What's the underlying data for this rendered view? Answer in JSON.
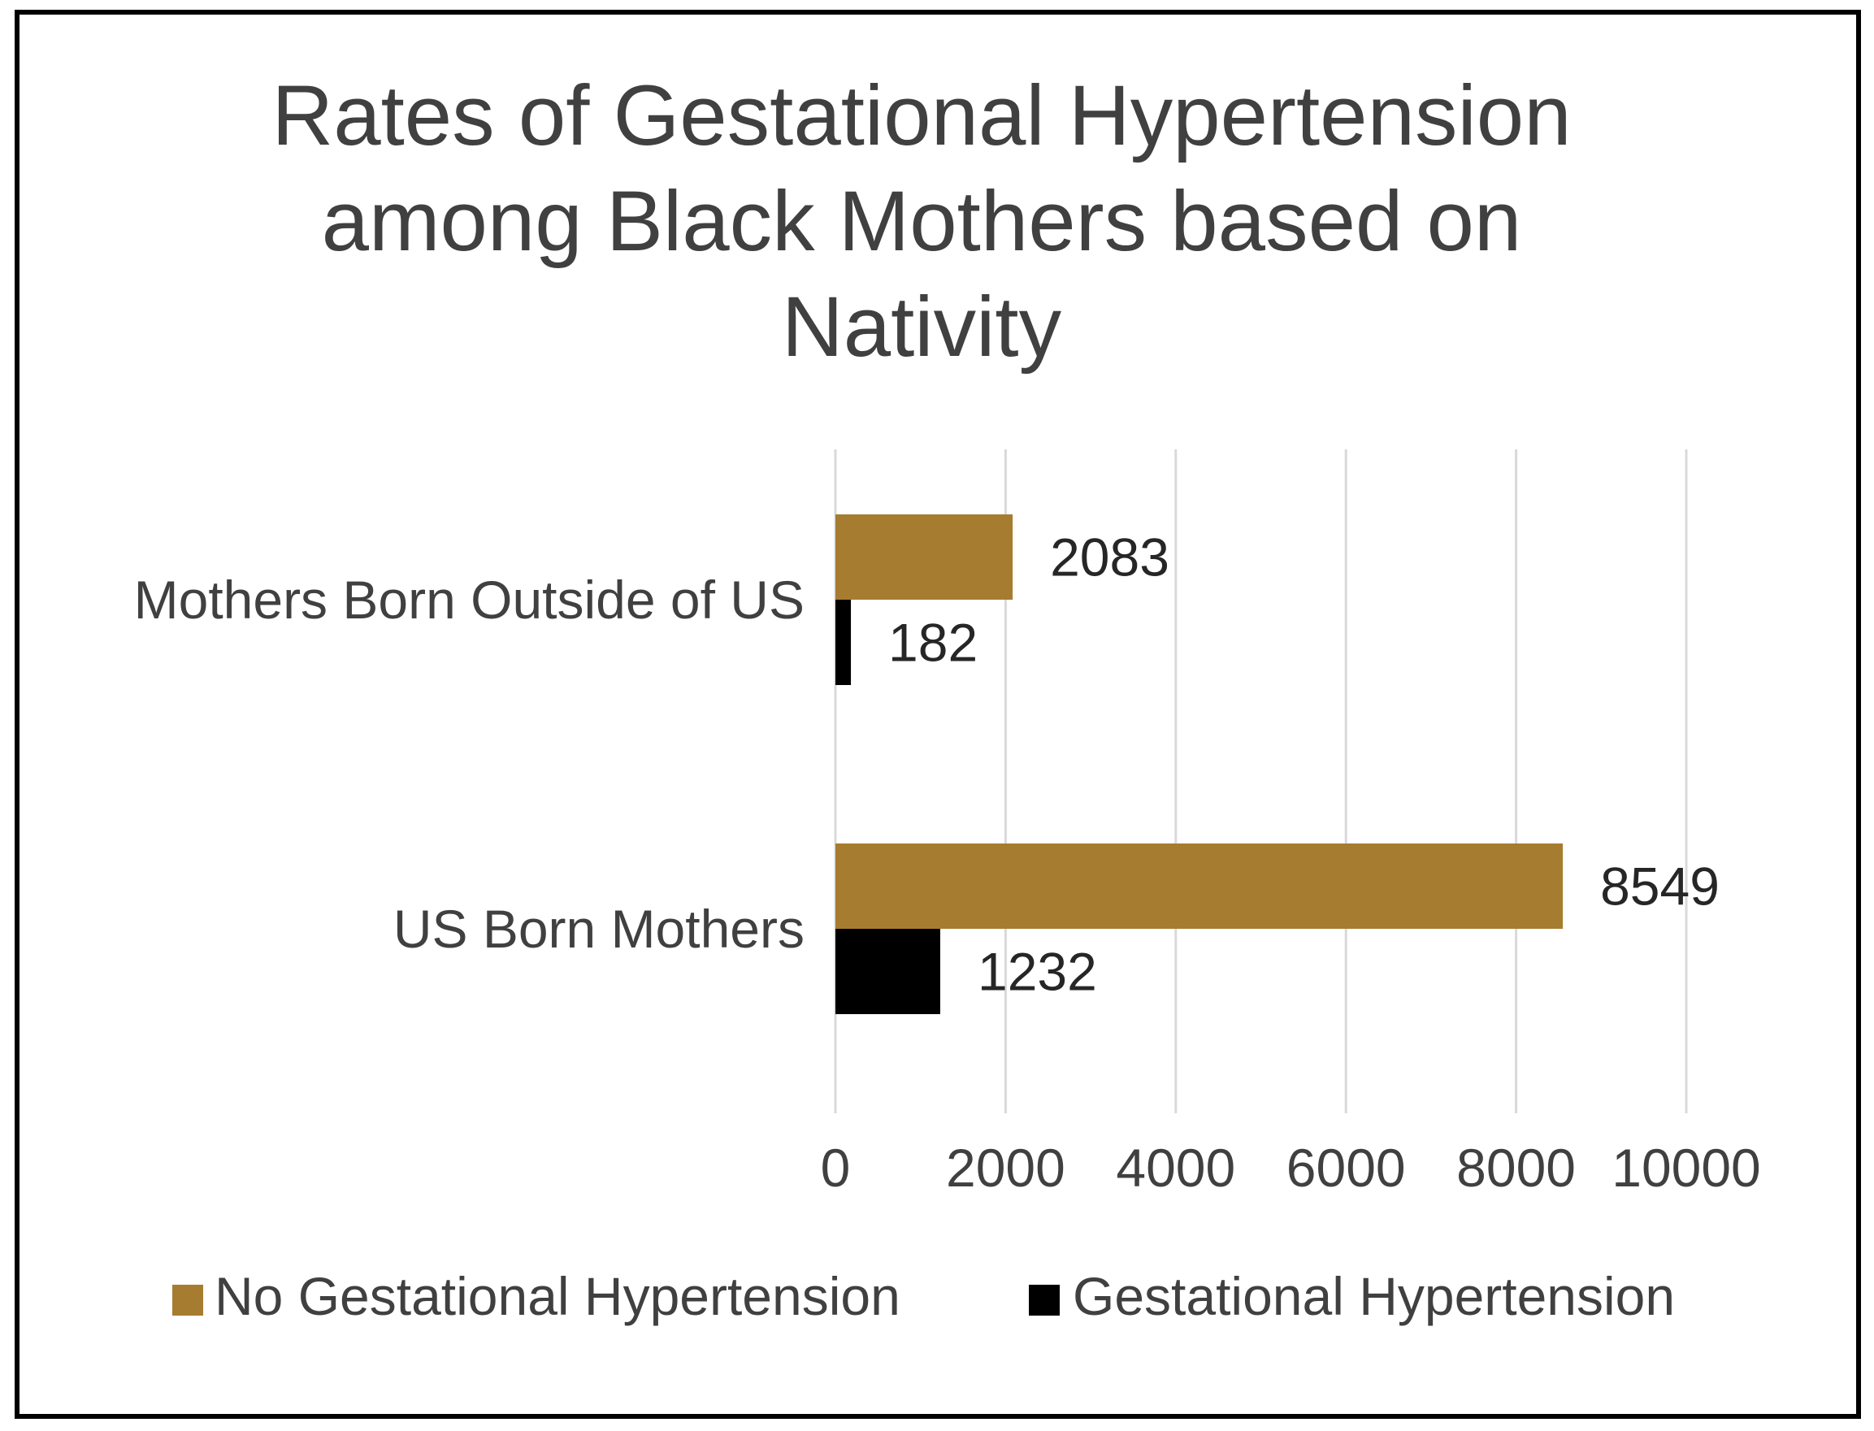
{
  "chart_data": {
    "type": "bar",
    "orientation": "horizontal",
    "title_lines": [
      "Rates of Gestational Hypertension",
      "among Black Mothers based on",
      "Nativity"
    ],
    "categories": [
      "Mothers Born Outside of US",
      "US Born Mothers"
    ],
    "series": [
      {
        "name": "No Gestational Hypertension",
        "color": "#A67C30",
        "values": [
          2083,
          8549
        ]
      },
      {
        "name": "Gestational Hypertension",
        "color": "#000000",
        "values": [
          182,
          1232
        ]
      }
    ],
    "xlim": [
      0,
      10000
    ],
    "xticks": [
      0,
      2000,
      4000,
      6000,
      8000,
      10000
    ],
    "xlabel": "",
    "ylabel": "",
    "grid": true,
    "grid_color": "#D9D9D9",
    "legend_position": "bottom"
  }
}
